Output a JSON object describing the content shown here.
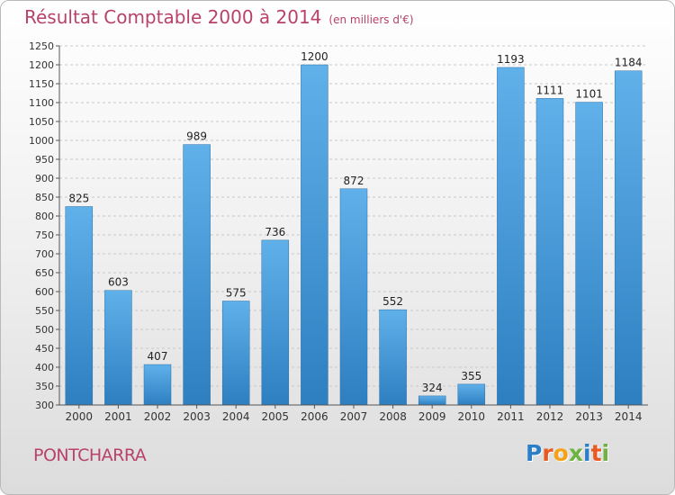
{
  "title": "Résultat Comptable 2000 à 2014",
  "unit_note": "(en milliers d'€)",
  "city": "PONTCHARRA",
  "logo": {
    "text": "Proxiti",
    "letters": [
      "P",
      "r",
      "o",
      "x",
      "i",
      "t",
      "i"
    ],
    "colors": [
      "#2a7fc8",
      "#e85a20",
      "#f4a218",
      "#6cb33f",
      "#2a7fc8",
      "#e85a20",
      "#6cb33f"
    ]
  },
  "colors": {
    "title": "#b8426b",
    "bar_top": "#60b0ea",
    "bar_bottom": "#2d7fc0",
    "grid": "#c8c8c8"
  },
  "chart_data": {
    "type": "bar",
    "categories": [
      "2000",
      "2001",
      "2002",
      "2003",
      "2004",
      "2005",
      "2006",
      "2007",
      "2008",
      "2009",
      "2010",
      "2011",
      "2012",
      "2013",
      "2014"
    ],
    "values": [
      825,
      603,
      407,
      989,
      575,
      736,
      1200,
      872,
      552,
      324,
      355,
      1193,
      1111,
      1101,
      1184
    ],
    "ylim": [
      300,
      1250
    ],
    "ytick_step": 50,
    "grid": true,
    "xlabel": "",
    "ylabel": ""
  }
}
